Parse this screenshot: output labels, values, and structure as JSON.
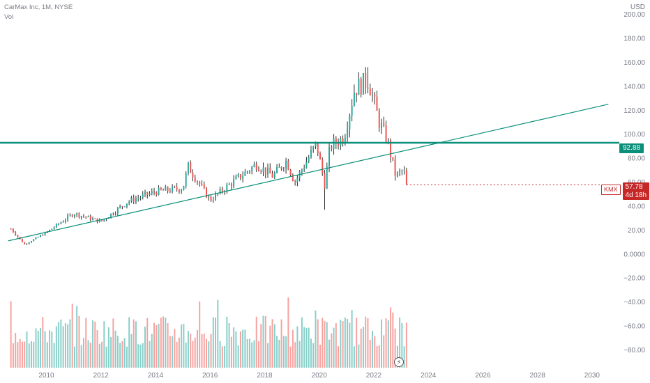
{
  "legend": {
    "title": "CarMax Inc, 1M, NYSE",
    "volume_label": "Vol"
  },
  "currency_label": "USD",
  "price_tag": {
    "symbol": "KMX",
    "price": "57.78",
    "countdown": "4d 18h"
  },
  "horizontal_line_tag": "92.88",
  "icons": {
    "event_icon": "lightning-bolt-icon"
  },
  "colors": {
    "up": "#26a69a",
    "down": "#ef5350",
    "line": "#0a8f7a",
    "tag": "#c62828"
  },
  "chart_data": {
    "type": "candlestick",
    "title": "CarMax Inc, 1M, NYSE",
    "currency": "USD",
    "y_ticks": [
      200,
      180,
      160,
      140,
      120,
      100,
      80,
      60,
      40,
      20,
      0,
      -20,
      -40,
      -60,
      -80
    ],
    "y_tick_labels": [
      "200.00",
      "180.00",
      "160.00",
      "140.00",
      "120.00",
      "100.00",
      "80.00",
      "60.00",
      "40.00",
      "20.00",
      "0.0000",
      "−20.00",
      "−40.00",
      "−60.00",
      "−80.00"
    ],
    "ylim": [
      -96,
      212
    ],
    "x_tick_labels": [
      "2010",
      "2012",
      "2014",
      "2016",
      "2018",
      "2020",
      "2022",
      "2024",
      "2026",
      "2028",
      "2030"
    ],
    "x_tick_years": [
      2010,
      2012,
      2014,
      2016,
      2018,
      2020,
      2022,
      2024,
      2026,
      2028,
      2030
    ],
    "xlim": [
      2008.3,
      2031.0
    ],
    "key_points": [
      {
        "year": 2008.7,
        "price": 21
      },
      {
        "year": 2009.2,
        "price": 8
      },
      {
        "year": 2010.0,
        "price": 18
      },
      {
        "year": 2011.0,
        "price": 34
      },
      {
        "year": 2012.0,
        "price": 27
      },
      {
        "year": 2013.0,
        "price": 44
      },
      {
        "year": 2014.0,
        "price": 52
      },
      {
        "year": 2015.0,
        "price": 55
      },
      {
        "year": 2015.2,
        "price": 73
      },
      {
        "year": 2016.0,
        "price": 45
      },
      {
        "year": 2017.0,
        "price": 63
      },
      {
        "year": 2017.7,
        "price": 75
      },
      {
        "year": 2018.3,
        "price": 65
      },
      {
        "year": 2018.8,
        "price": 78
      },
      {
        "year": 2019.1,
        "price": 60
      },
      {
        "year": 2019.9,
        "price": 92
      },
      {
        "year": 2020.2,
        "price": 58
      },
      {
        "year": 2020.4,
        "price": 90
      },
      {
        "year": 2020.9,
        "price": 97
      },
      {
        "year": 2021.3,
        "price": 138
      },
      {
        "year": 2021.8,
        "price": 145
      },
      {
        "year": 2021.95,
        "price": 132
      },
      {
        "year": 2022.2,
        "price": 110
      },
      {
        "year": 2022.5,
        "price": 95
      },
      {
        "year": 2022.8,
        "price": 65
      },
      {
        "year": 2023.1,
        "price": 70
      },
      {
        "year": 2023.2,
        "price": 57.78
      }
    ],
    "trendline": {
      "start": {
        "year": 2008.6,
        "price": 11
      },
      "end": {
        "year": 2030.6,
        "price": 125
      }
    },
    "horizontal_line": {
      "price": 92.88,
      "label": "92.88"
    },
    "last_price": 57.78
  }
}
